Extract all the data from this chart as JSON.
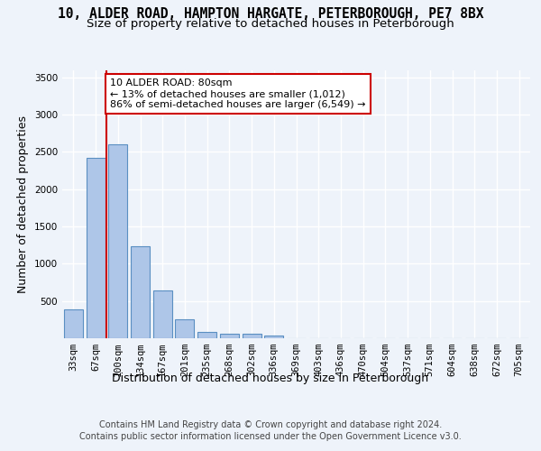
{
  "title_line1": "10, ALDER ROAD, HAMPTON HARGATE, PETERBOROUGH, PE7 8BX",
  "title_line2": "Size of property relative to detached houses in Peterborough",
  "xlabel": "Distribution of detached houses by size in Peterborough",
  "ylabel": "Number of detached properties",
  "categories": [
    "33sqm",
    "67sqm",
    "100sqm",
    "134sqm",
    "167sqm",
    "201sqm",
    "235sqm",
    "268sqm",
    "302sqm",
    "336sqm",
    "369sqm",
    "403sqm",
    "436sqm",
    "470sqm",
    "504sqm",
    "537sqm",
    "571sqm",
    "604sqm",
    "638sqm",
    "672sqm",
    "705sqm"
  ],
  "values": [
    390,
    2420,
    2600,
    1240,
    640,
    255,
    90,
    55,
    55,
    40,
    0,
    0,
    0,
    0,
    0,
    0,
    0,
    0,
    0,
    0,
    0
  ],
  "bar_color": "#aec6e8",
  "bar_edge_color": "#5a8fc2",
  "annotation_text": "10 ALDER ROAD: 80sqm\n← 13% of detached houses are smaller (1,012)\n86% of semi-detached houses are larger (6,549) →",
  "annotation_box_color": "#ffffff",
  "annotation_box_edge": "#cc0000",
  "red_line_color": "#cc0000",
  "ylim": [
    0,
    3600
  ],
  "yticks": [
    0,
    500,
    1000,
    1500,
    2000,
    2500,
    3000,
    3500
  ],
  "footer_line1": "Contains HM Land Registry data © Crown copyright and database right 2024.",
  "footer_line2": "Contains public sector information licensed under the Open Government Licence v3.0.",
  "bg_color": "#eef3fa",
  "plot_bg_color": "#eef3fa",
  "grid_color": "#ffffff",
  "title_fontsize": 10.5,
  "subtitle_fontsize": 9.5,
  "axis_label_fontsize": 9,
  "tick_fontsize": 7.5,
  "footer_fontsize": 7
}
